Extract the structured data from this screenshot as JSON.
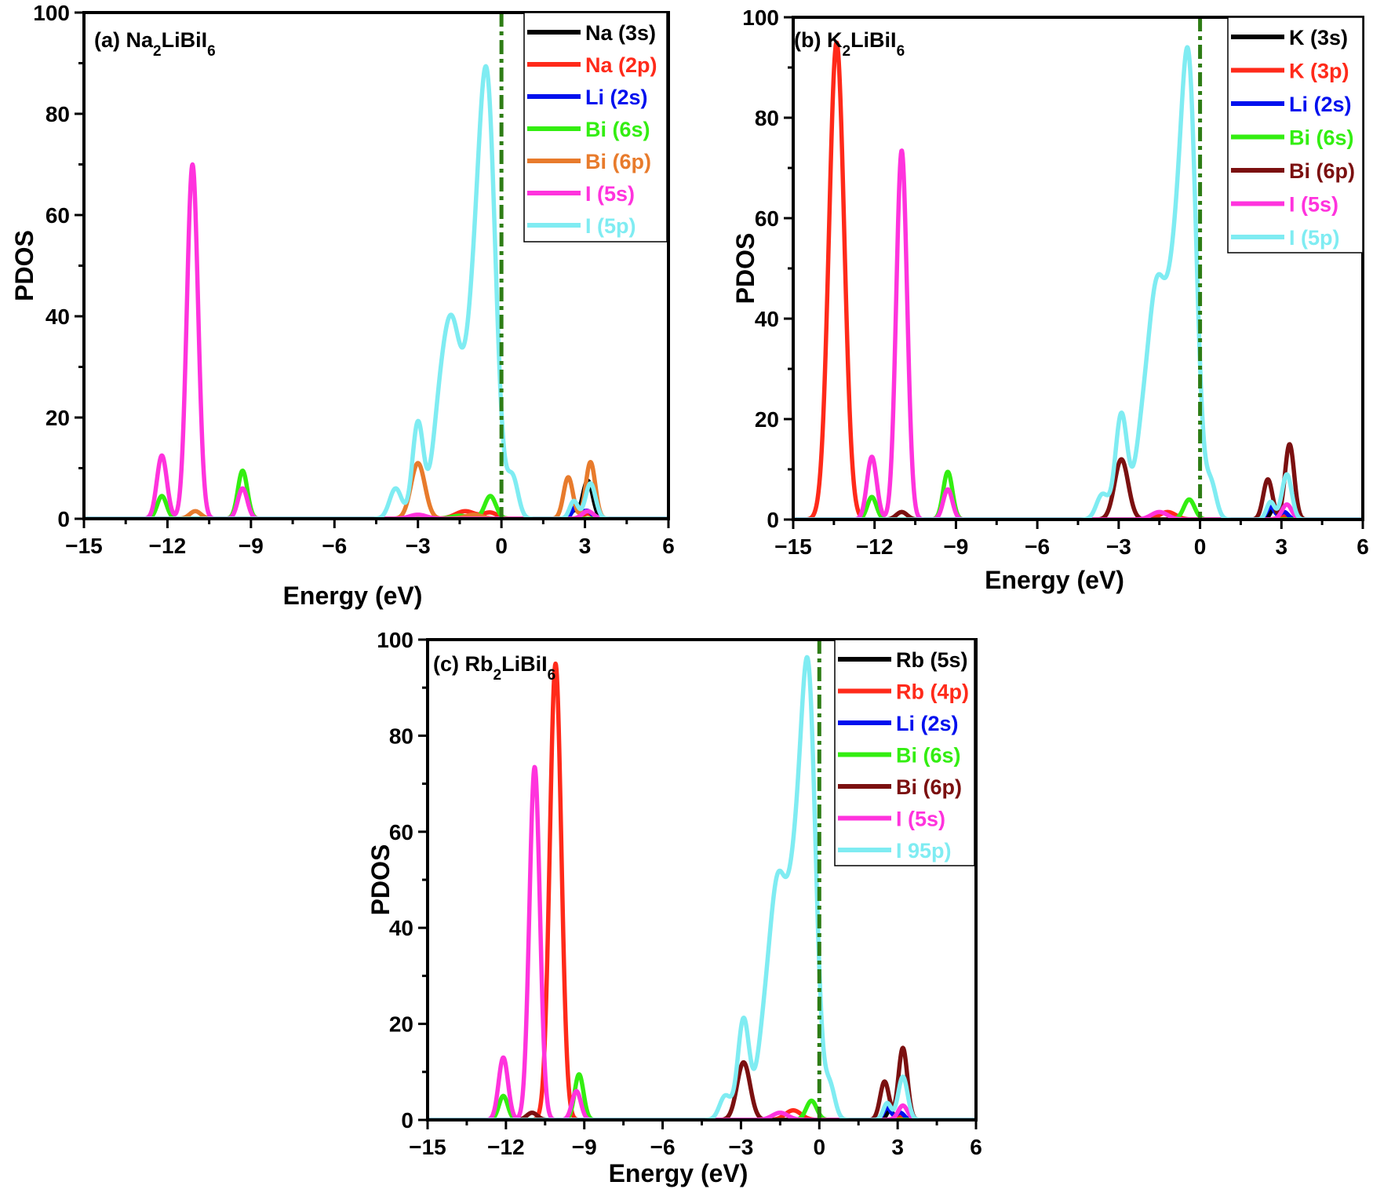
{
  "chart_data": [
    {
      "type": "line",
      "panel_label": "(a)",
      "title_parts": [
        {
          "text": "Na",
          "sub": false
        },
        {
          "text": "2",
          "sub": true
        },
        {
          "text": "LiBiI",
          "sub": false
        },
        {
          "text": "6",
          "sub": true
        }
      ],
      "xlabel": "Energy (eV)",
      "ylabel": "PDOS",
      "xlim": [
        -15,
        6
      ],
      "ylim": [
        0,
        100
      ],
      "xticks": [
        -15,
        -12,
        -9,
        -6,
        -3,
        0,
        3,
        6
      ],
      "yticks": [
        0,
        20,
        40,
        60,
        80,
        100
      ],
      "xtick_labels": [
        "−15",
        "−12",
        "−9",
        "−6",
        "−3",
        "0",
        "3",
        "6"
      ],
      "ytick_labels": [
        "0",
        "20",
        "40",
        "60",
        "80",
        "100"
      ],
      "fermi_level": 0,
      "fermi_color": "#2e7d15",
      "legend_position": "top-right",
      "series": [
        {
          "name": "Na (3s)",
          "color": "#000000",
          "peaks": [
            [
              3.1,
              7.5,
              0.18
            ],
            [
              2.6,
              1.5,
              0.12
            ]
          ]
        },
        {
          "name": "Na (2p)",
          "color": "#ff2a1a",
          "peaks": [
            [
              -1.3,
              1.5,
              0.35
            ],
            [
              -0.4,
              1.2,
              0.25
            ],
            [
              3.1,
              1.0,
              0.2
            ]
          ]
        },
        {
          "name": "Li (2s)",
          "color": "#0010ee",
          "peaks": [
            [
              2.7,
              2.5,
              0.15
            ],
            [
              3.1,
              1.5,
              0.15
            ]
          ]
        },
        {
          "name": "Bi (6s)",
          "color": "#33ee11",
          "peaks": [
            [
              -12.2,
              4.5,
              0.17
            ],
            [
              -9.3,
              9.5,
              0.17
            ],
            [
              -0.4,
              4.5,
              0.2
            ],
            [
              -1.5,
              0.6,
              0.3
            ]
          ]
        },
        {
          "name": "Bi (6p)",
          "color": "#e87b2c",
          "peaks": [
            [
              -11.0,
              1.5,
              0.2
            ],
            [
              -3.0,
              11,
              0.25
            ],
            [
              2.4,
              8.2,
              0.17
            ],
            [
              3.2,
              11.2,
              0.17
            ],
            [
              -1.0,
              0.8,
              0.3
            ]
          ]
        },
        {
          "name": "I (5s)",
          "color": "#ff33dd",
          "peaks": [
            [
              -12.2,
              12.5,
              0.18
            ],
            [
              -11.1,
              70,
              0.2
            ],
            [
              -9.3,
              6,
              0.17
            ],
            [
              -3.0,
              0.8,
              0.3
            ],
            [
              3.1,
              1.5,
              0.2
            ]
          ]
        },
        {
          "name": "I (5p)",
          "color": "#7fecf2",
          "peaks": [
            [
              -3.8,
              6,
              0.22
            ],
            [
              -3.0,
              19,
              0.2
            ],
            [
              -2.3,
              10,
              0.25
            ],
            [
              -1.8,
              38,
              0.35
            ],
            [
              -1.0,
              32,
              0.3
            ],
            [
              -0.5,
              80,
              0.3
            ],
            [
              0.4,
              8,
              0.2
            ],
            [
              2.6,
              3.5,
              0.15
            ],
            [
              3.2,
              7,
              0.18
            ]
          ]
        }
      ]
    },
    {
      "type": "line",
      "panel_label": "(b)",
      "title_parts": [
        {
          "text": "K",
          "sub": false
        },
        {
          "text": "2",
          "sub": true
        },
        {
          "text": "LiBiI",
          "sub": false
        },
        {
          "text": "6",
          "sub": true
        }
      ],
      "xlabel": "Energy (eV)",
      "ylabel": "PDOS",
      "xlim": [
        -15,
        6
      ],
      "ylim": [
        0,
        100
      ],
      "xticks": [
        -15,
        -12,
        -9,
        -6,
        -3,
        0,
        3,
        6
      ],
      "yticks": [
        0,
        20,
        40,
        60,
        80,
        100
      ],
      "xtick_labels": [
        "−15",
        "−12",
        "−9",
        "−6",
        "−3",
        "0",
        "3",
        "6"
      ],
      "ytick_labels": [
        "0",
        "20",
        "40",
        "60",
        "80",
        "100"
      ],
      "fermi_level": 0,
      "fermi_color": "#2e7d15",
      "legend_position": "top-right",
      "series": [
        {
          "name": "K (3s)",
          "color": "#000000",
          "peaks": [
            [
              2.7,
              2.0,
              0.12
            ],
            [
              3.1,
              1.0,
              0.12
            ]
          ]
        },
        {
          "name": "K (3p)",
          "color": "#ff2a1a",
          "peaks": [
            [
              -13.4,
              95,
              0.28
            ],
            [
              -1.2,
              1.5,
              0.3
            ],
            [
              3.1,
              0.8,
              0.2
            ]
          ]
        },
        {
          "name": "Li (2s)",
          "color": "#0010ee",
          "peaks": [
            [
              2.6,
              2.5,
              0.15
            ],
            [
              3.1,
              1.5,
              0.15
            ]
          ]
        },
        {
          "name": "Bi (6s)",
          "color": "#33ee11",
          "peaks": [
            [
              -12.1,
              4.5,
              0.17
            ],
            [
              -9.3,
              9.5,
              0.17
            ],
            [
              -0.4,
              4,
              0.2
            ]
          ]
        },
        {
          "name": "Bi (6p)",
          "color": "#7b1010",
          "peaks": [
            [
              -11.0,
              1.5,
              0.2
            ],
            [
              -2.9,
              12,
              0.25
            ],
            [
              2.5,
              8,
              0.17
            ],
            [
              3.3,
              15,
              0.17
            ]
          ]
        },
        {
          "name": "I (5s)",
          "color": "#ff33dd",
          "peaks": [
            [
              -12.1,
              12.5,
              0.18
            ],
            [
              -11.0,
              73.5,
              0.2
            ],
            [
              -9.3,
              6,
              0.17
            ],
            [
              -1.5,
              1.5,
              0.3
            ],
            [
              3.2,
              3,
              0.18
            ]
          ]
        },
        {
          "name": "I (5p)",
          "color": "#7fecf2",
          "peaks": [
            [
              -3.6,
              5,
              0.22
            ],
            [
              -2.9,
              21,
              0.22
            ],
            [
              -2.2,
              10,
              0.25
            ],
            [
              -1.6,
              45,
              0.35
            ],
            [
              -0.9,
              40,
              0.3
            ],
            [
              -0.4,
              82,
              0.28
            ],
            [
              0.4,
              7,
              0.2
            ],
            [
              2.6,
              3.5,
              0.15
            ],
            [
              3.2,
              9,
              0.18
            ]
          ]
        }
      ]
    },
    {
      "type": "line",
      "panel_label": "(c)",
      "title_parts": [
        {
          "text": "Rb",
          "sub": false
        },
        {
          "text": "2",
          "sub": true
        },
        {
          "text": "LiBiI",
          "sub": false
        },
        {
          "text": "6",
          "sub": true
        }
      ],
      "xlabel": "Energy (eV)",
      "ylabel": "PDOS",
      "xlim": [
        -15,
        6
      ],
      "ylim": [
        0,
        100
      ],
      "xticks": [
        -15,
        -12,
        -9,
        -6,
        -3,
        0,
        3,
        6
      ],
      "yticks": [
        0,
        20,
        40,
        60,
        80,
        100
      ],
      "xtick_labels": [
        "−15",
        "−12",
        "−9",
        "−6",
        "−3",
        "0",
        "3",
        "6"
      ],
      "ytick_labels": [
        "0",
        "20",
        "40",
        "60",
        "80",
        "100"
      ],
      "fermi_level": 0,
      "fermi_color": "#2e7d15",
      "legend_position": "top-right",
      "series": [
        {
          "name": "Rb (5s)",
          "color": "#000000",
          "peaks": [
            [
              2.7,
              2.0,
              0.12
            ],
            [
              3.1,
              1.0,
              0.12
            ]
          ]
        },
        {
          "name": "Rb (4p)",
          "color": "#ff2a1a",
          "peaks": [
            [
              -10.1,
              95,
              0.22
            ],
            [
              -1.0,
              2,
              0.3
            ],
            [
              3.1,
              0.8,
              0.2
            ]
          ]
        },
        {
          "name": "Li (2s)",
          "color": "#0010ee",
          "peaks": [
            [
              2.6,
              2.5,
              0.15
            ],
            [
              3.1,
              1.5,
              0.15
            ]
          ]
        },
        {
          "name": "Bi (6s)",
          "color": "#33ee11",
          "peaks": [
            [
              -12.1,
              5,
              0.17
            ],
            [
              -9.2,
              9.5,
              0.17
            ],
            [
              -0.3,
              4,
              0.2
            ]
          ]
        },
        {
          "name": "Bi (6p)",
          "color": "#7b1010",
          "peaks": [
            [
              -11.0,
              1.5,
              0.2
            ],
            [
              -2.9,
              12,
              0.25
            ],
            [
              2.5,
              8,
              0.17
            ],
            [
              3.2,
              15,
              0.17
            ]
          ]
        },
        {
          "name": "I (5s)",
          "color": "#ff33dd",
          "peaks": [
            [
              -12.1,
              13,
              0.18
            ],
            [
              -10.9,
              73.5,
              0.2
            ],
            [
              -9.3,
              6,
              0.17
            ],
            [
              -1.5,
              1.5,
              0.3
            ],
            [
              3.2,
              3,
              0.18
            ]
          ]
        },
        {
          "name": "I 95p)",
          "color": "#7fecf2",
          "peaks": [
            [
              -3.6,
              5,
              0.22
            ],
            [
              -2.9,
              21,
              0.22
            ],
            [
              -2.2,
              10,
              0.25
            ],
            [
              -1.6,
              48,
              0.35
            ],
            [
              -0.9,
              41,
              0.3
            ],
            [
              -0.4,
              84,
              0.28
            ],
            [
              0.4,
              7,
              0.2
            ],
            [
              2.6,
              3.5,
              0.15
            ],
            [
              3.2,
              9,
              0.18
            ]
          ]
        }
      ]
    }
  ]
}
